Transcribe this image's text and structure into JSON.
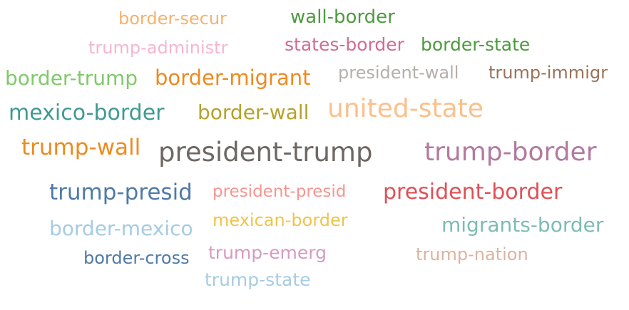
{
  "word_cloud": {
    "words": [
      {
        "text": "border-secur",
        "color": "#f7b26b"
      },
      {
        "text": "wall-border",
        "color": "#4e9a3f"
      },
      {
        "text": "trump-administr",
        "color": "#f5b6cf"
      },
      {
        "text": "states-border",
        "color": "#cf6d94"
      },
      {
        "text": "border-state",
        "color": "#4e9a3f"
      },
      {
        "text": "border-trump",
        "color": "#80c96b"
      },
      {
        "text": "border-migrant",
        "color": "#ef8a1f"
      },
      {
        "text": "president-wall",
        "color": "#b5afac"
      },
      {
        "text": "trump-immigr",
        "color": "#9a7259"
      },
      {
        "text": "mexico-border",
        "color": "#3f9a93"
      },
      {
        "text": "border-wall",
        "color": "#b5a22c"
      },
      {
        "text": "united-state",
        "color": "#fbc08b"
      },
      {
        "text": "trump-wall",
        "color": "#ef8a1f"
      },
      {
        "text": "president-trump",
        "color": "#6e6763"
      },
      {
        "text": "trump-border",
        "color": "#b37aa0"
      },
      {
        "text": "trump-presid",
        "color": "#4f7aa8"
      },
      {
        "text": "president-presid",
        "color": "#f79590"
      },
      {
        "text": "president-border",
        "color": "#e05057"
      },
      {
        "text": "border-mexico",
        "color": "#a6cce3"
      },
      {
        "text": "mexican-border",
        "color": "#efc44c"
      },
      {
        "text": "migrants-border",
        "color": "#7cbcb3"
      },
      {
        "text": "border-cross",
        "color": "#4f7aa8"
      },
      {
        "text": "trump-emerg",
        "color": "#d59bc2"
      },
      {
        "text": "trump-nation",
        "color": "#dcb3a0"
      },
      {
        "text": "trump-state",
        "color": "#a6cce3"
      }
    ]
  }
}
